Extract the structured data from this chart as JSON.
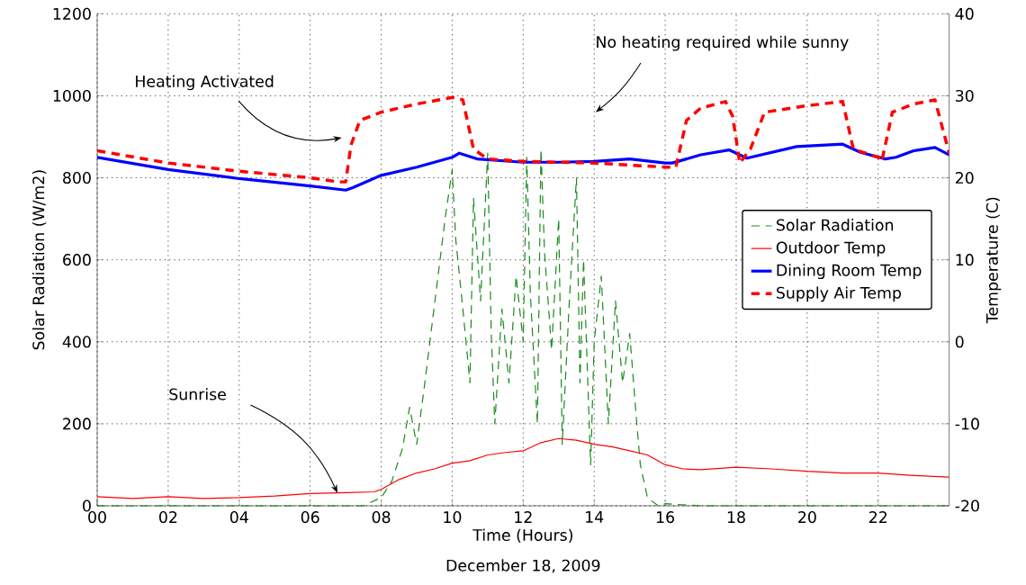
{
  "chart_data": {
    "type": "line",
    "xlabel": "Time (Hours)",
    "ylabel": "Solar Radiation (W/m2)",
    "y2label": "Temperature (C)",
    "xlim": [
      0,
      24
    ],
    "xticks": [
      {
        "value": 0,
        "label": "00"
      },
      {
        "value": 2,
        "label": "02"
      },
      {
        "value": 4,
        "label": "04"
      },
      {
        "value": 6,
        "label": "06"
      },
      {
        "value": 8,
        "label": "08"
      },
      {
        "value": 10,
        "label": "10"
      },
      {
        "value": 12,
        "label": "12"
      },
      {
        "value": 14,
        "label": "14"
      },
      {
        "value": 16,
        "label": "16"
      },
      {
        "value": 18,
        "label": "18"
      },
      {
        "value": 20,
        "label": "20"
      },
      {
        "value": 22,
        "label": "22"
      }
    ],
    "ylim": [
      0,
      1200
    ],
    "yticks": [
      0,
      200,
      400,
      600,
      800,
      1000,
      1200
    ],
    "y2lim": [
      -20,
      40
    ],
    "y2ticks": [
      -20,
      -10,
      0,
      10,
      20,
      30,
      40
    ],
    "grid": true,
    "legend": "right",
    "series": [
      {
        "name": "Solar Radiation",
        "color": "#1a8a1a",
        "line_style": "dashed",
        "x": [
          0,
          4,
          7.5,
          8,
          8.3,
          8.6,
          8.8,
          9.0,
          9.2,
          9.4,
          9.6,
          9.8,
          10.0,
          10.1,
          10.3,
          10.5,
          10.6,
          10.8,
          11.0,
          11.1,
          11.2,
          11.4,
          11.6,
          11.8,
          12.0,
          12.1,
          12.2,
          12.4,
          12.5,
          12.6,
          12.8,
          13.0,
          13.1,
          13.3,
          13.5,
          13.6,
          13.7,
          13.9,
          14.0,
          14.2,
          14.4,
          14.6,
          14.8,
          15.0,
          15.2,
          15.3,
          15.5,
          15.8,
          16,
          17,
          20,
          24
        ],
        "values": [
          0,
          0,
          0,
          20,
          60,
          140,
          240,
          150,
          280,
          420,
          560,
          700,
          820,
          650,
          480,
          300,
          750,
          500,
          860,
          420,
          200,
          480,
          300,
          560,
          400,
          850,
          520,
          200,
          870,
          620,
          380,
          700,
          150,
          500,
          800,
          300,
          600,
          100,
          400,
          560,
          200,
          500,
          300,
          420,
          200,
          100,
          20,
          0,
          5,
          0,
          0,
          0
        ]
      },
      {
        "name": "Outdoor Temp",
        "color": "#ff0000",
        "line_style": "solid",
        "axis": "y2",
        "x": [
          0,
          1,
          2,
          3,
          4,
          5,
          6,
          7,
          7.8,
          8,
          8.5,
          9,
          9.5,
          10,
          10.5,
          11,
          11.5,
          12,
          12.5,
          13,
          13.5,
          14,
          14.5,
          15,
          15.5,
          16,
          16.5,
          17,
          18,
          19,
          20,
          21,
          22,
          23,
          24
        ],
        "values": [
          -18.9,
          -19.1,
          -18.9,
          -19.1,
          -19,
          -18.8,
          -18.5,
          -18.4,
          -18.3,
          -18,
          -16.8,
          -16,
          -15.5,
          -14.8,
          -14.5,
          -13.8,
          -13.5,
          -13.3,
          -12.3,
          -11.8,
          -12,
          -12.5,
          -12.8,
          -13.3,
          -13.8,
          -15,
          -15.5,
          -15.6,
          -15.3,
          -15.5,
          -15.8,
          -16,
          -16,
          -16.3,
          -16.5
        ]
      },
      {
        "name": "Dining Room Temp",
        "color": "#0000ff",
        "line_style": "solid",
        "axis": "y2",
        "x": [
          0,
          2,
          4,
          6,
          7,
          7.2,
          8,
          9,
          10,
          10.2,
          10.7,
          12,
          13,
          14,
          15,
          16,
          16.2,
          17,
          17.8,
          18.3,
          19,
          19.7,
          21,
          21.5,
          22.2,
          22.5,
          23,
          23.6,
          24
        ],
        "values": [
          22.5,
          21,
          19.9,
          19,
          18.5,
          18.8,
          20.3,
          21.3,
          22.5,
          23,
          22.3,
          21.9,
          21.9,
          22,
          22.3,
          21.8,
          21.8,
          22.8,
          23.4,
          22.4,
          23.1,
          23.8,
          24.1,
          23.1,
          22.3,
          22.5,
          23.3,
          23.7,
          22.8
        ]
      },
      {
        "name": "Supply Air Temp",
        "color": "#ff0000",
        "line_style": "dashed",
        "axis": "y2",
        "x": [
          0,
          2,
          4,
          6,
          6.8,
          7.0,
          7.15,
          7.4,
          8,
          9,
          10,
          10.3,
          10.6,
          11,
          12,
          14,
          16,
          16.3,
          16.6,
          17,
          17.7,
          17.9,
          18.1,
          18.4,
          18.8,
          20,
          21,
          21.3,
          22,
          22.1,
          22.4,
          23,
          23.6,
          24
        ],
        "values": [
          23.3,
          21.8,
          20.8,
          20,
          19.5,
          19.5,
          24,
          27,
          28,
          29,
          29.8,
          29.5,
          23.5,
          22.3,
          22,
          21.8,
          21.3,
          21.3,
          27,
          28.5,
          29.3,
          27.5,
          21.8,
          23.5,
          28,
          28.8,
          29.3,
          23.5,
          22.5,
          22,
          28,
          29,
          29.5,
          23
        ]
      }
    ],
    "annotations": [
      "Heating Activated",
      "No heating required while sunny",
      "Sunrise",
      "December 18, 2009"
    ]
  }
}
